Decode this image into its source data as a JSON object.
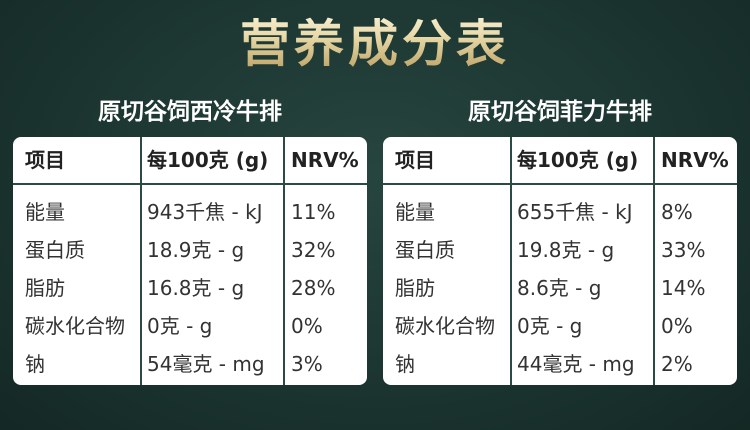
{
  "title": "营养成分表",
  "tables": [
    {
      "title": "原切谷饲西冷牛排",
      "header": [
        "项目",
        "每100克 (g)",
        "NRV%"
      ],
      "rows": [
        [
          "能量",
          "943千焦 - kJ",
          "11%"
        ],
        [
          "蛋白质",
          "18.9克 - g",
          "32%"
        ],
        [
          "脂肪",
          "16.8克 - g",
          "28%"
        ],
        [
          "碳水化合物",
          "0克 - g",
          "0%"
        ],
        [
          "钠",
          "54毫克 - mg",
          "3%"
        ]
      ]
    },
    {
      "title": "原切谷饲菲力牛排",
      "header": [
        "项目",
        "每100克 (g)",
        "NRV%"
      ],
      "rows": [
        [
          "能量",
          "655千焦 - kJ",
          "8%"
        ],
        [
          "蛋白质",
          "19.8克 - g",
          "33%"
        ],
        [
          "脂肪",
          "8.6克 - g",
          "14%"
        ],
        [
          "碳水化合物",
          "0克 - g",
          "0%"
        ],
        [
          "钠",
          "44毫克 - mg",
          "2%"
        ]
      ]
    }
  ]
}
